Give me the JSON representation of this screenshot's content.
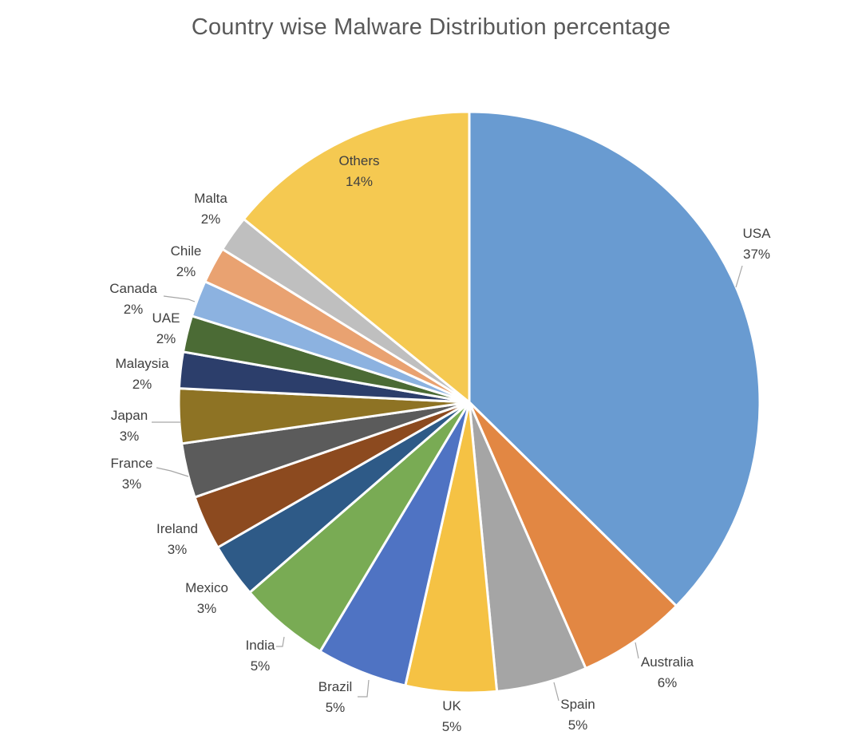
{
  "chart_data": {
    "type": "pie",
    "title": "Country wise Malware Distribution percentage",
    "start_angle_deg": 0,
    "direction": "clockwise",
    "legend": "none",
    "slices": [
      {
        "label": "USA",
        "value": 37,
        "display": "37%",
        "color": "#699bd1"
      },
      {
        "label": "Australia",
        "value": 6,
        "display": "6%",
        "color": "#e28743"
      },
      {
        "label": "Spain",
        "value": 5,
        "display": "5%",
        "color": "#a5a5a5"
      },
      {
        "label": "UK",
        "value": 5,
        "display": "5%",
        "color": "#f5c244"
      },
      {
        "label": "Brazil",
        "value": 5,
        "display": "5%",
        "color": "#4f73c3"
      },
      {
        "label": "India",
        "value": 5,
        "display": "5%",
        "color": "#79ab54"
      },
      {
        "label": "Mexico",
        "value": 3,
        "display": "3%",
        "color": "#2e5a87"
      },
      {
        "label": "Ireland",
        "value": 3,
        "display": "3%",
        "color": "#8c4a1f"
      },
      {
        "label": "France",
        "value": 3,
        "display": "3%",
        "color": "#5b5b5b"
      },
      {
        "label": "Japan",
        "value": 3,
        "display": "3%",
        "color": "#8e7324"
      },
      {
        "label": "Malaysia",
        "value": 2,
        "display": "2%",
        "color": "#2c3e6b"
      },
      {
        "label": "UAE",
        "value": 2,
        "display": "2%",
        "color": "#4b6b35"
      },
      {
        "label": "Canada",
        "value": 2,
        "display": "2%",
        "color": "#8cb2e0"
      },
      {
        "label": "Chile",
        "value": 2,
        "display": "2%",
        "color": "#e9a271"
      },
      {
        "label": "Malta",
        "value": 2,
        "display": "2%",
        "color": "#bfbfbf"
      },
      {
        "label": "Others",
        "value": 14,
        "display": "14%",
        "color": "#f5c951"
      }
    ]
  }
}
